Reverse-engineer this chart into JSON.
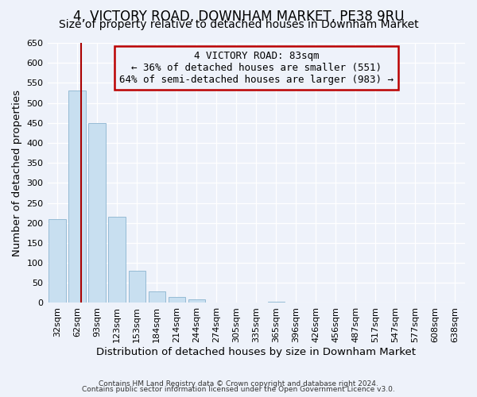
{
  "title": "4, VICTORY ROAD, DOWNHAM MARKET, PE38 9RU",
  "subtitle": "Size of property relative to detached houses in Downham Market",
  "xlabel": "Distribution of detached houses by size in Downham Market",
  "ylabel": "Number of detached properties",
  "bar_labels": [
    "32sqm",
    "62sqm",
    "93sqm",
    "123sqm",
    "153sqm",
    "184sqm",
    "214sqm",
    "244sqm",
    "274sqm",
    "305sqm",
    "335sqm",
    "365sqm",
    "396sqm",
    "426sqm",
    "456sqm",
    "487sqm",
    "517sqm",
    "547sqm",
    "577sqm",
    "608sqm",
    "638sqm"
  ],
  "bar_values": [
    210,
    530,
    450,
    215,
    80,
    28,
    15,
    8,
    0,
    0,
    0,
    3,
    0,
    0,
    0,
    0,
    1,
    0,
    0,
    1,
    1
  ],
  "bar_color": "#c8dff0",
  "bar_edge_color": "#8ab4d0",
  "vline_color": "#aa0000",
  "vline_pos": 1.18,
  "annotation_title": "4 VICTORY ROAD: 83sqm",
  "annotation_line1": "← 36% of detached houses are smaller (551)",
  "annotation_line2": "64% of semi-detached houses are larger (983) →",
  "annotation_box_color": "#bb0000",
  "ylim": [
    0,
    650
  ],
  "yticks": [
    0,
    50,
    100,
    150,
    200,
    250,
    300,
    350,
    400,
    450,
    500,
    550,
    600,
    650
  ],
  "footer1": "Contains HM Land Registry data © Crown copyright and database right 2024.",
  "footer2": "Contains public sector information licensed under the Open Government Licence v3.0.",
  "bg_color": "#eef2fa",
  "grid_color": "#ffffff",
  "title_fontsize": 12,
  "subtitle_fontsize": 10,
  "tick_fontsize": 8,
  "label_fontsize": 9.5,
  "annot_fontsize": 9
}
